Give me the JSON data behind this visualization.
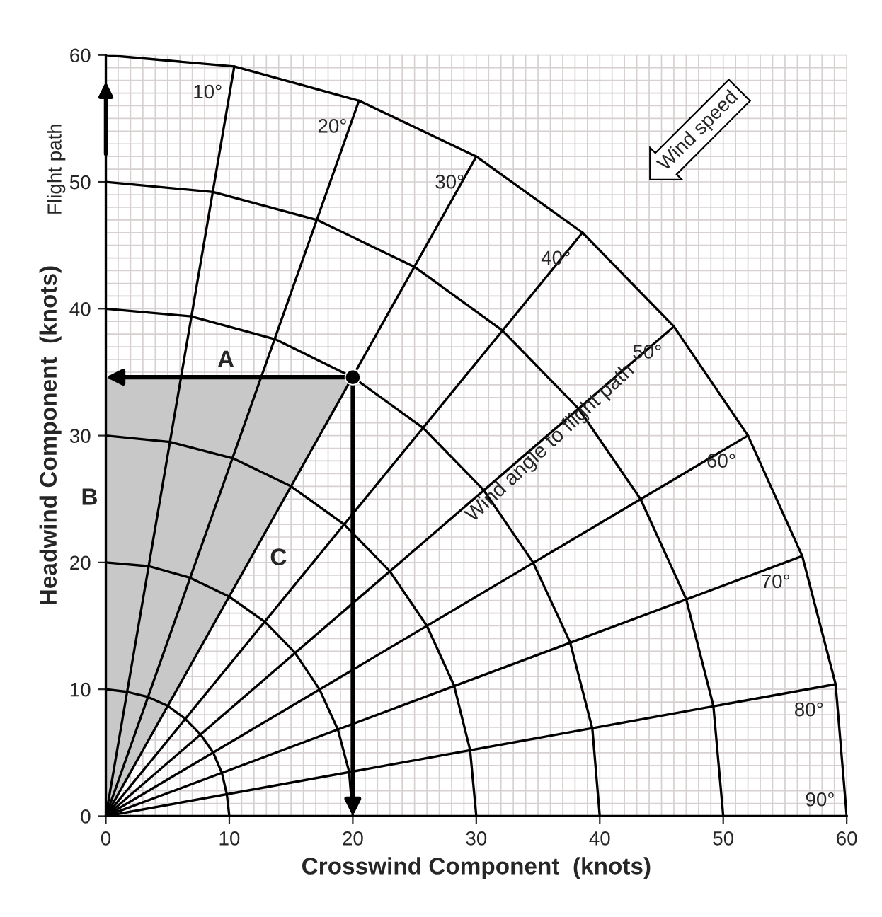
{
  "chart_data": {
    "type": "line",
    "xlabel": "Crosswind Component  (knots)",
    "ylabel": "Headwind Component  (knots)",
    "xlim": [
      0,
      60
    ],
    "ylim": [
      0,
      60
    ],
    "xticks": [
      0,
      10,
      20,
      30,
      40,
      50,
      60
    ],
    "yticks": [
      0,
      10,
      20,
      30,
      40,
      50,
      60
    ],
    "grid": true,
    "legend": false,
    "series": [
      {
        "color": "#000000",
        "x": [
          0,
          1.7,
          3.4,
          5,
          6.4,
          7.7,
          8.7,
          9.4,
          9.8,
          10
        ],
        "values": [
          10,
          9.8,
          9.4,
          8.7,
          7.7,
          6.4,
          5,
          3.4,
          1.7,
          0
        ]
      },
      {
        "color": "#000000",
        "x": [
          0,
          3.5,
          6.8,
          10,
          12.9,
          15.3,
          17.3,
          18.8,
          19.7,
          20
        ],
        "values": [
          20,
          19.7,
          18.8,
          17.3,
          15.3,
          12.9,
          10,
          6.8,
          3.5,
          0
        ]
      },
      {
        "color": "#000000",
        "x": [
          0,
          5.2,
          10.3,
          15,
          19.3,
          23,
          26,
          28.2,
          29.5,
          30
        ],
        "values": [
          30,
          29.5,
          28.2,
          26,
          23,
          19.3,
          15,
          10.3,
          5.2,
          0
        ]
      },
      {
        "color": "#000000",
        "x": [
          0,
          6.9,
          13.7,
          20,
          25.7,
          30.6,
          34.6,
          37.6,
          39.4,
          40
        ],
        "values": [
          40,
          39.4,
          37.6,
          34.6,
          30.6,
          25.7,
          20,
          13.7,
          6.9,
          0
        ]
      },
      {
        "color": "#000000",
        "x": [
          0,
          8.7,
          17.1,
          25,
          32.1,
          38.3,
          43.3,
          47,
          49.2,
          50
        ],
        "values": [
          50,
          49.2,
          47,
          43.3,
          38.3,
          32.1,
          25,
          17.1,
          8.7,
          0
        ]
      },
      {
        "color": "#000000",
        "x": [
          0,
          10.4,
          20.5,
          30,
          38.6,
          46,
          52,
          56.4,
          59.1,
          60
        ],
        "values": [
          60,
          59.1,
          56.4,
          52,
          46,
          38.6,
          30,
          20.5,
          10.4,
          0
        ]
      },
      {
        "color": "#000000",
        "x": [
          0,
          10.4
        ],
        "values": [
          0,
          59.1
        ]
      },
      {
        "color": "#000000",
        "x": [
          0,
          20.5
        ],
        "values": [
          0,
          56.4
        ]
      },
      {
        "color": "#000000",
        "x": [
          0,
          30
        ],
        "values": [
          0,
          52
        ]
      },
      {
        "color": "#000000",
        "x": [
          0,
          38.6
        ],
        "values": [
          0,
          46
        ]
      },
      {
        "color": "#000000",
        "x": [
          0,
          46
        ],
        "values": [
          0,
          38.6
        ]
      },
      {
        "color": "#000000",
        "x": [
          0,
          52
        ],
        "values": [
          0,
          30
        ]
      },
      {
        "color": "#000000",
        "x": [
          0,
          56.4
        ],
        "values": [
          0,
          20.5
        ]
      },
      {
        "color": "#000000",
        "x": [
          0,
          59.1
        ],
        "values": [
          0,
          10.4
        ]
      },
      {
        "type": "scatter",
        "color": "#000000",
        "marker": "circle",
        "x": [
          20
        ],
        "values": [
          34.6
        ]
      }
    ],
    "annotations": [
      {
        "text": "10°",
        "x": 10.4,
        "y": 59.1
      },
      {
        "text": "20°",
        "x": 20.5,
        "y": 56.4
      },
      {
        "text": "30°",
        "x": 30,
        "y": 52
      },
      {
        "text": "40°",
        "x": 38.6,
        "y": 46
      },
      {
        "text": "50°",
        "x": 46,
        "y": 38.6
      },
      {
        "text": "60°",
        "x": 52,
        "y": 30
      },
      {
        "text": "70°",
        "x": 56.4,
        "y": 20.5
      },
      {
        "text": "80°",
        "x": 59.1,
        "y": 10.4
      },
      {
        "text": "90°",
        "x": 60,
        "y": 0
      },
      "A",
      "B",
      "C",
      "Flight path",
      "Wind speed",
      "Wind angle to flight path"
    ]
  }
}
